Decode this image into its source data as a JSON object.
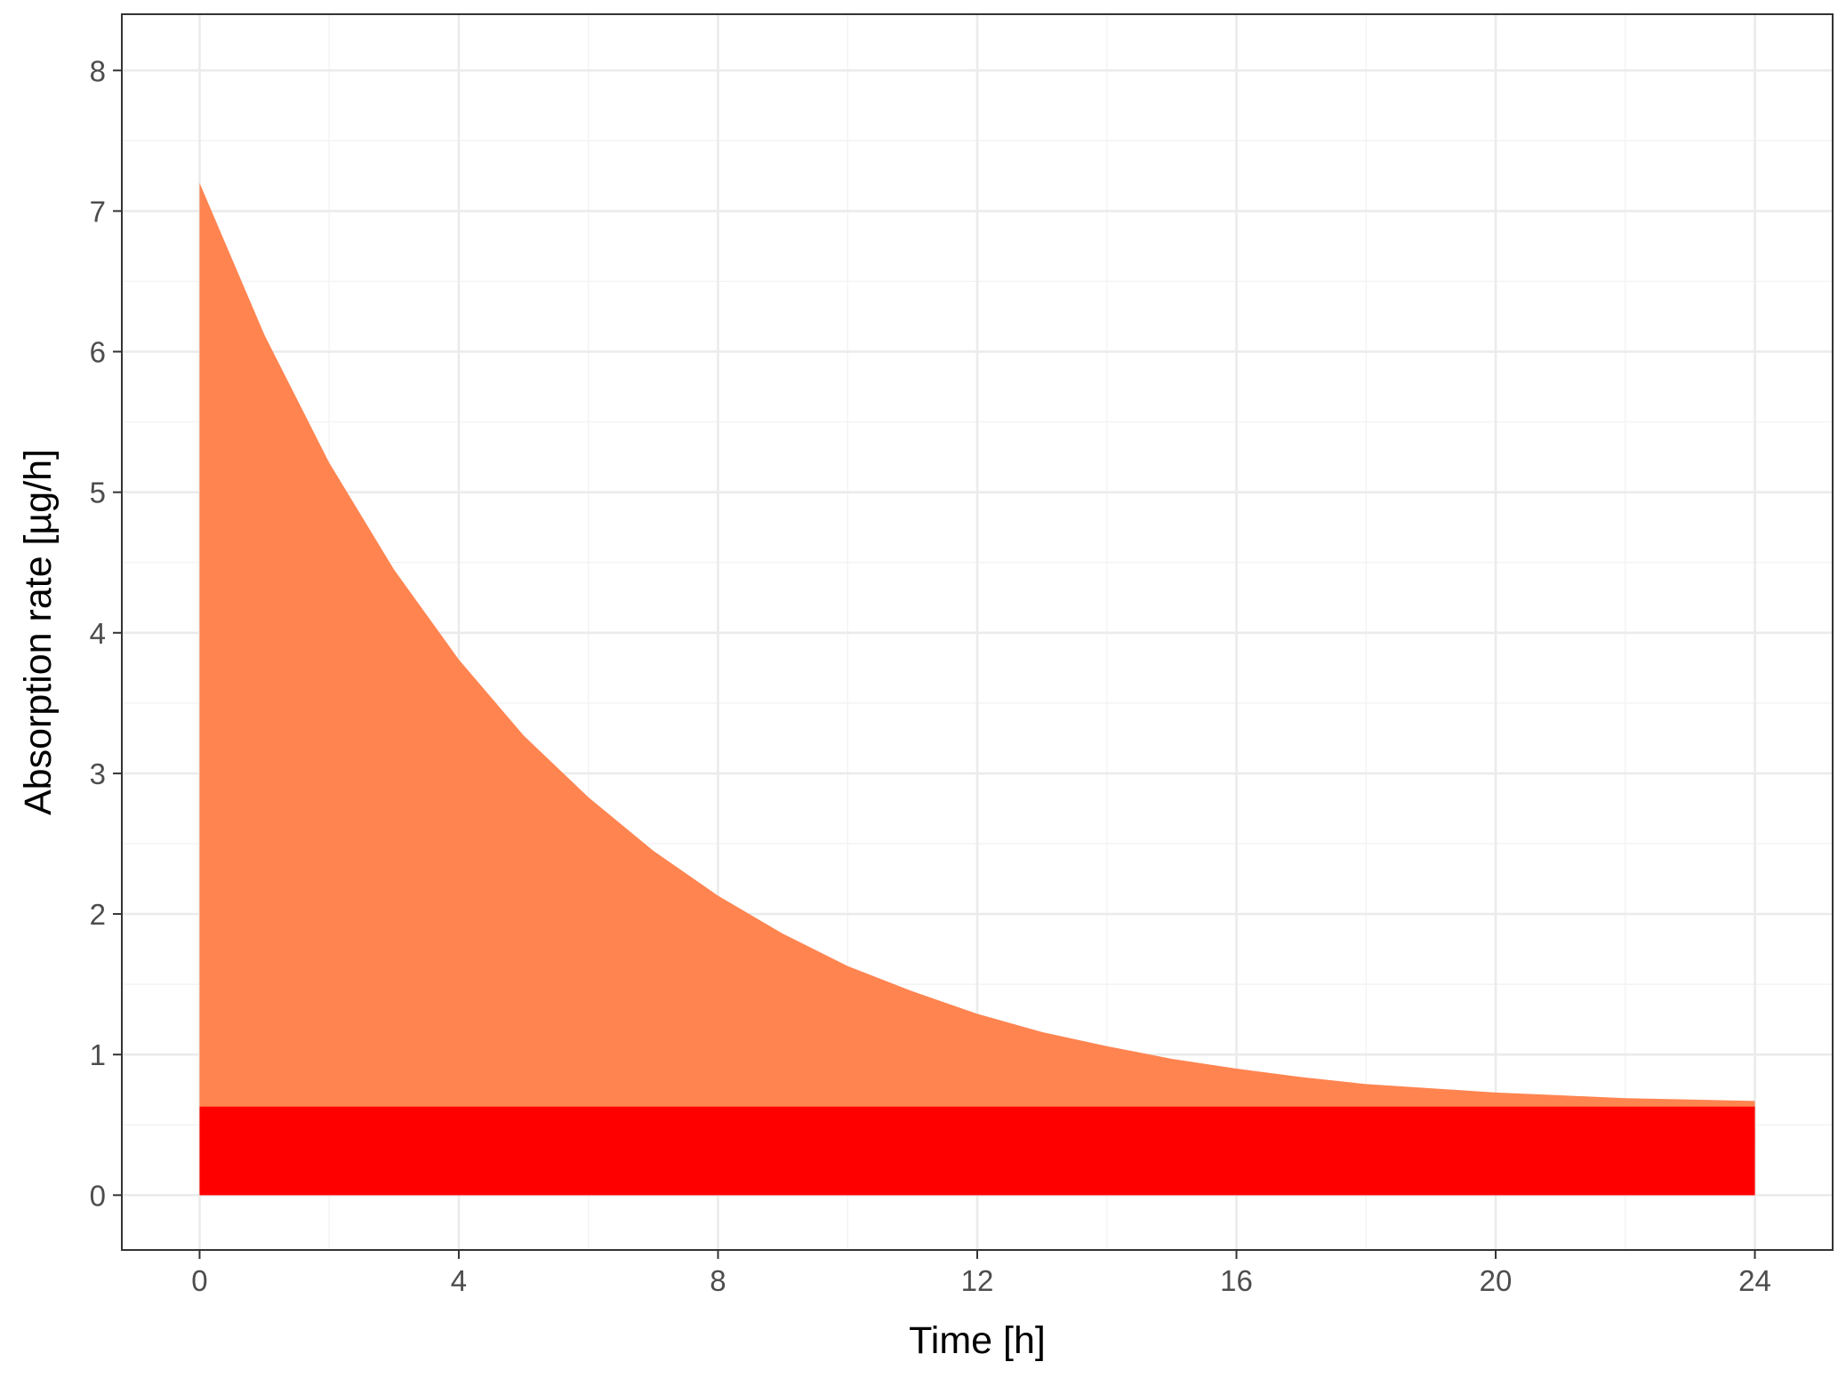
{
  "chart_data": {
    "type": "area",
    "title": "",
    "xlabel": "Time [h]",
    "ylabel": "Absorption rate [µg/h]",
    "xlim": [
      -1.2,
      25.2
    ],
    "ylim": [
      -0.39,
      8.4
    ],
    "x_ticks": [
      0,
      4,
      8,
      12,
      16,
      20,
      24
    ],
    "y_ticks": [
      0,
      1,
      2,
      3,
      4,
      5,
      6,
      7,
      8
    ],
    "grid": true,
    "legend": "none",
    "series": [
      {
        "fill": "#FF8450",
        "x": [
          0,
          1,
          2,
          3,
          4,
          5,
          6,
          7,
          8,
          9,
          10,
          11,
          12,
          13,
          14,
          15,
          16,
          17,
          18,
          19,
          20,
          21,
          22,
          23,
          24
        ],
        "y": [
          7.2,
          6.12,
          5.21,
          4.45,
          3.81,
          3.27,
          2.83,
          2.45,
          2.13,
          1.86,
          1.63,
          1.45,
          1.29,
          1.16,
          1.06,
          0.97,
          0.9,
          0.84,
          0.79,
          0.76,
          0.73,
          0.71,
          0.69,
          0.68,
          0.67
        ]
      },
      {
        "fill": "#FF0000",
        "x": [
          0,
          24
        ],
        "y": [
          0.63,
          0.63
        ]
      }
    ]
  }
}
